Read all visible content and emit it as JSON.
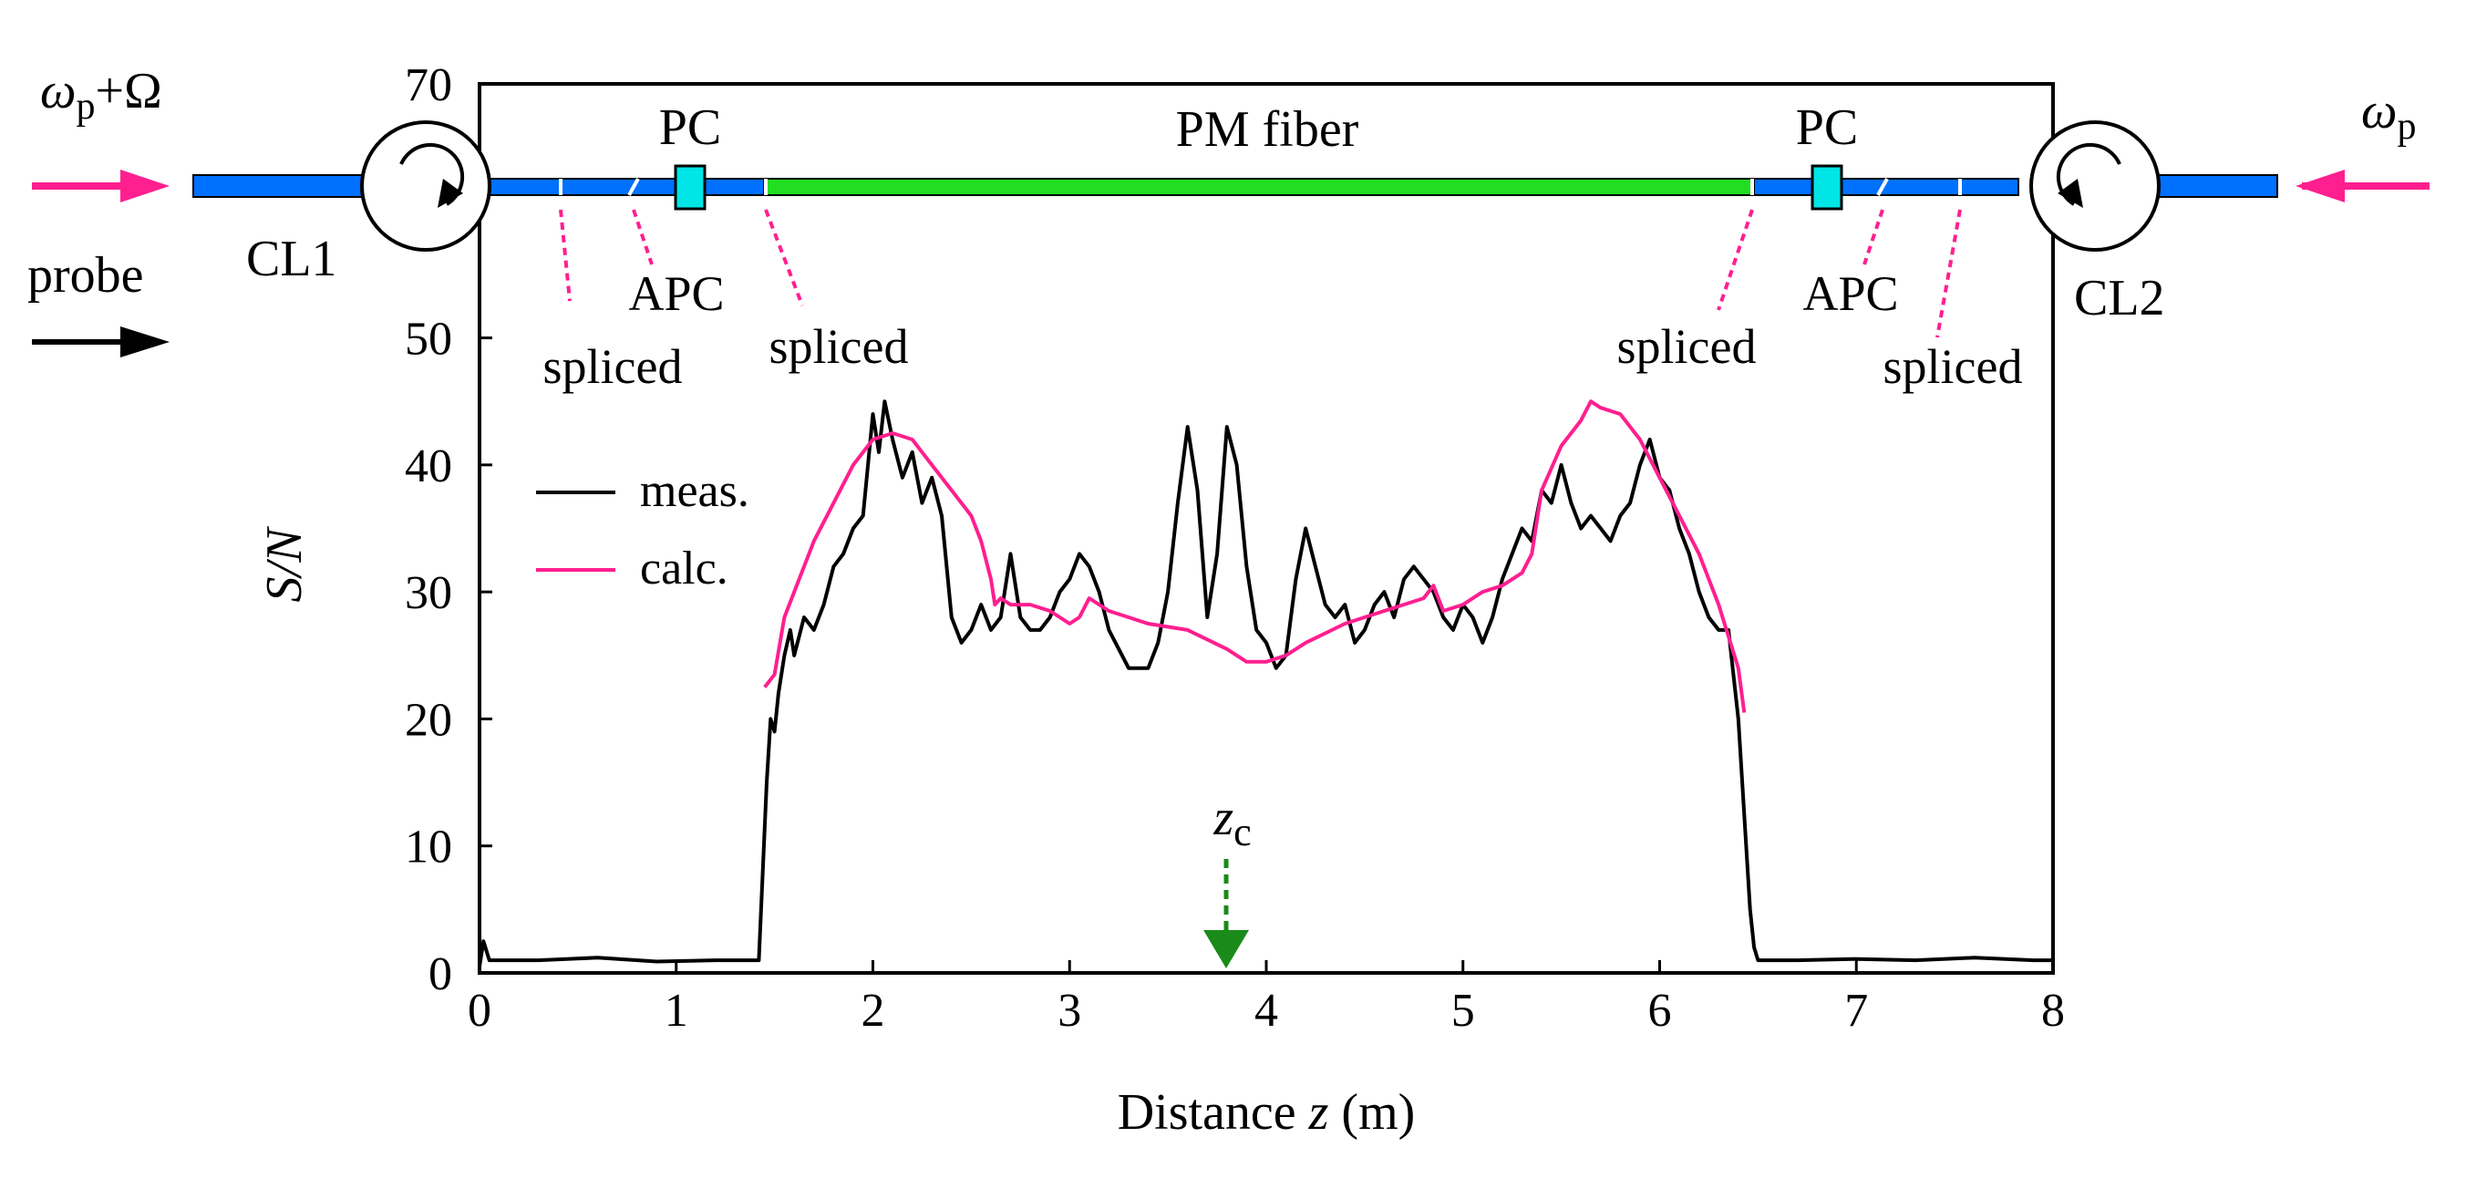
{
  "colors": {
    "fiber": "#0070ff",
    "pm_fiber": "#22dd22",
    "pc_box": "#00e5e5",
    "pump_arrow": "#ff1f8f",
    "probe_arrow": "#000000",
    "meas_line": "#000000",
    "calc_line": "#ff1f8f",
    "zc_arrow": "#1a8a1a",
    "axes": "#000000"
  },
  "diagram": {
    "left_input_label": "ωp+Ω",
    "left_input_base": "ω",
    "left_input_sub": "p",
    "left_input_suffix": "+Ω",
    "right_input_label": "ωp",
    "right_input_base": "ω",
    "right_input_sub": "p",
    "probe_label": "probe",
    "circulator_left": "CL1",
    "circulator_right": "CL2",
    "pc_left": "PC",
    "pc_right": "PC",
    "fiber_label": "PM fiber",
    "connection_labels_left": [
      "spliced",
      "APC",
      "spliced"
    ],
    "connection_labels_right": [
      "spliced",
      "APC",
      "spliced"
    ]
  },
  "chart_data": {
    "type": "line",
    "xlabel": "Distance z (m)",
    "xlabel_prefix": "Distance ",
    "xlabel_var": "z",
    "xlabel_suffix": " (m)",
    "ylabel": "S/N",
    "xlim": [
      0,
      8
    ],
    "ylim": [
      0,
      70
    ],
    "x_ticks": [
      "0",
      "1",
      "2",
      "3",
      "4",
      "5",
      "6",
      "7",
      "8"
    ],
    "y_ticks": [
      "0",
      "10",
      "20",
      "30",
      "40",
      "50",
      "70"
    ],
    "legend": {
      "position": "left",
      "entries": [
        "meas.",
        "calc."
      ]
    },
    "annotation": {
      "label": "zc",
      "base": "z",
      "sub": "c",
      "x": 3.8
    },
    "series": [
      {
        "name": "meas.",
        "x": [
          0,
          0.02,
          0.05,
          0.3,
          0.6,
          0.9,
          1.2,
          1.42,
          1.44,
          1.46,
          1.48,
          1.5,
          1.52,
          1.55,
          1.58,
          1.6,
          1.65,
          1.7,
          1.75,
          1.8,
          1.85,
          1.9,
          1.95,
          2.0,
          2.03,
          2.06,
          2.1,
          2.15,
          2.2,
          2.25,
          2.3,
          2.35,
          2.4,
          2.45,
          2.5,
          2.55,
          2.6,
          2.65,
          2.7,
          2.75,
          2.8,
          2.85,
          2.9,
          2.95,
          3.0,
          3.05,
          3.1,
          3.15,
          3.2,
          3.3,
          3.4,
          3.45,
          3.5,
          3.55,
          3.6,
          3.65,
          3.7,
          3.75,
          3.8,
          3.85,
          3.9,
          3.95,
          4.0,
          4.05,
          4.1,
          4.15,
          4.2,
          4.25,
          4.3,
          4.35,
          4.4,
          4.45,
          4.5,
          4.55,
          4.6,
          4.65,
          4.7,
          4.75,
          4.8,
          4.85,
          4.9,
          4.95,
          5.0,
          5.05,
          5.1,
          5.15,
          5.2,
          5.25,
          5.3,
          5.35,
          5.4,
          5.45,
          5.5,
          5.55,
          5.6,
          5.65,
          5.7,
          5.75,
          5.8,
          5.85,
          5.9,
          5.95,
          6.0,
          6.05,
          6.1,
          6.15,
          6.2,
          6.25,
          6.3,
          6.35,
          6.4,
          6.42,
          6.44,
          6.46,
          6.48,
          6.5,
          6.7,
          7.0,
          7.3,
          7.6,
          7.9,
          8.0
        ],
        "y": [
          0.5,
          2.5,
          1.0,
          1.0,
          1.2,
          0.9,
          1.0,
          1.0,
          8,
          15,
          20,
          19,
          22,
          25,
          27,
          25,
          28,
          27,
          29,
          32,
          33,
          35,
          36,
          44,
          41,
          45,
          42,
          39,
          41,
          37,
          39,
          36,
          28,
          26,
          27,
          29,
          27,
          28,
          33,
          28,
          27,
          27,
          28,
          30,
          31,
          33,
          32,
          30,
          27,
          24,
          24,
          26,
          30,
          37,
          43,
          38,
          28,
          33,
          43,
          40,
          32,
          27,
          26,
          24,
          25,
          31,
          35,
          32,
          29,
          28,
          29,
          26,
          27,
          29,
          30,
          28,
          31,
          32,
          31,
          30,
          28,
          27,
          29,
          28,
          26,
          28,
          31,
          33,
          35,
          34,
          38,
          37,
          40,
          37,
          35,
          36,
          35,
          34,
          36,
          37,
          40,
          42,
          39,
          38,
          35,
          33,
          30,
          28,
          27,
          27,
          20,
          15,
          10,
          5,
          2,
          1.0,
          1.0,
          1.1,
          1.0,
          1.2,
          1.0,
          1.0
        ]
      },
      {
        "name": "calc.",
        "x": [
          1.45,
          1.5,
          1.55,
          1.6,
          1.7,
          1.8,
          1.9,
          2.0,
          2.1,
          2.2,
          2.3,
          2.4,
          2.5,
          2.55,
          2.6,
          2.62,
          2.65,
          2.7,
          2.8,
          2.9,
          3.0,
          3.05,
          3.1,
          3.2,
          3.4,
          3.6,
          3.8,
          3.9,
          4.0,
          4.1,
          4.2,
          4.4,
          4.6,
          4.8,
          4.85,
          4.9,
          5.0,
          5.1,
          5.2,
          5.3,
          5.35,
          5.38,
          5.4,
          5.5,
          5.6,
          5.65,
          5.7,
          5.8,
          5.9,
          6.0,
          6.1,
          6.2,
          6.3,
          6.4,
          6.43
        ],
        "y": [
          22.5,
          23.5,
          28,
          30,
          34,
          37,
          40,
          42,
          42.5,
          42,
          40,
          38,
          36,
          34,
          31,
          29,
          29.5,
          29,
          29,
          28.5,
          27.5,
          28,
          29.5,
          28.5,
          27.5,
          27,
          25.5,
          24.5,
          24.5,
          25,
          26,
          27.5,
          28.5,
          29.5,
          30.5,
          28.5,
          29,
          30,
          30.5,
          31.5,
          33,
          36,
          38,
          41.5,
          43.5,
          45,
          44.5,
          44,
          42,
          39,
          36,
          33,
          29,
          24,
          20.5
        ]
      }
    ]
  }
}
